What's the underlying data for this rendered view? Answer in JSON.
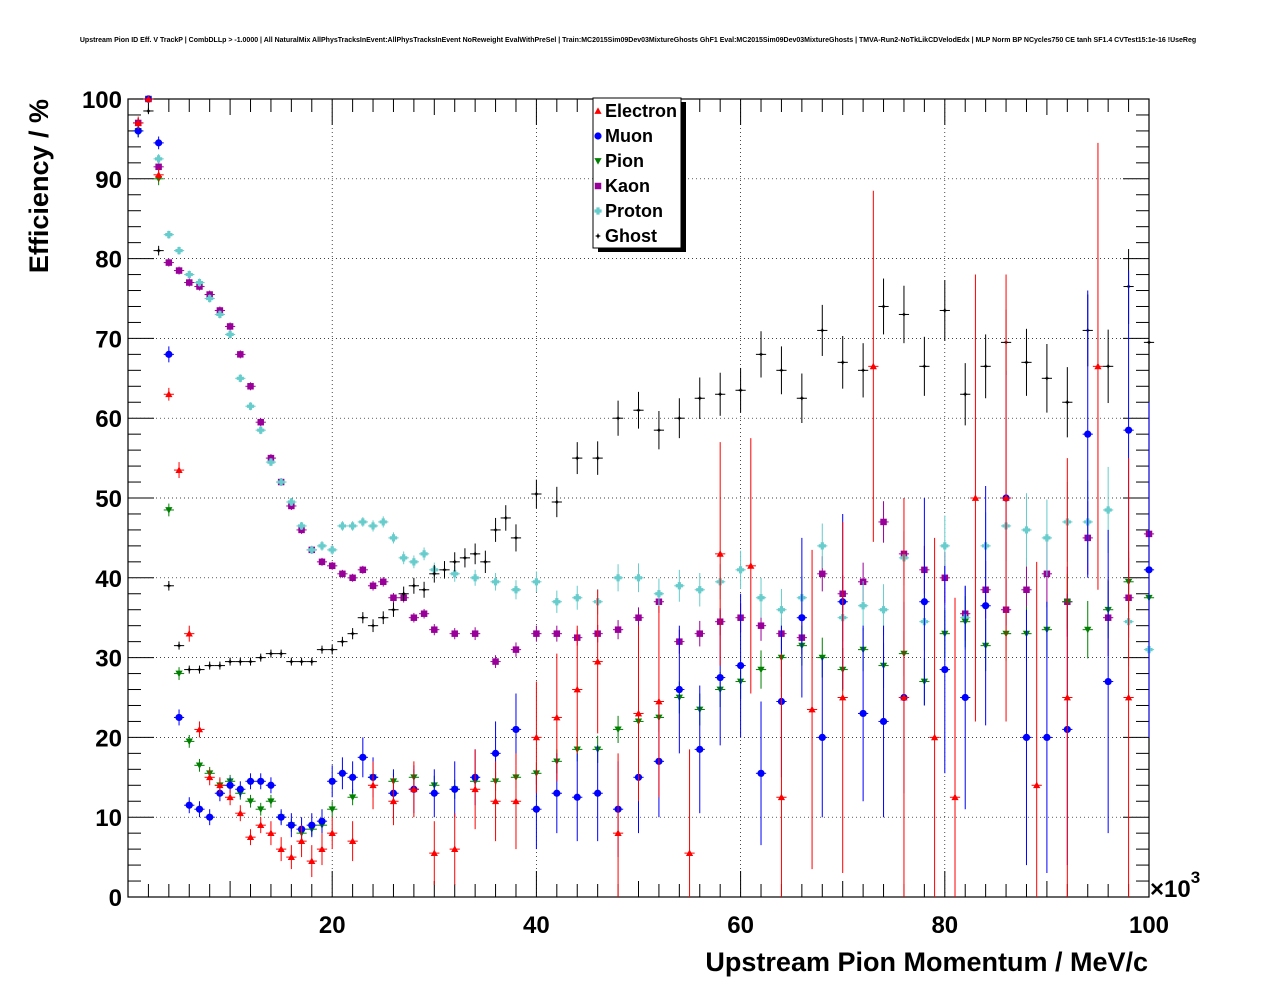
{
  "chart_data": {
    "type": "scatter",
    "title": "Upstream Pion ID Eff. V TrackP | CombDLLp > -1.0000 | All NaturalMix AllPhysTracksInEvent:AllPhysTracksInEvent NoReweight EvalWithPreSel | Train:MC2015Sim09Dev03MixtureGhosts GhF1 Eval:MC2015Sim09Dev03MixtureGhosts | TMVA-Run2-NoTkLikCDVelodEdx | MLP Norm BP NCycles750 CE tanh SF1.4 CVTest15:1e-16 !UseReg",
    "xlabel": "Upstream Pion Momentum / MeV/c",
    "ylabel": "Efficiency / %",
    "x_multiplier": "×10",
    "x_multiplier_exp": "3",
    "xlim": [
      0,
      100
    ],
    "ylim": [
      0,
      100
    ],
    "x_ticks": [
      20,
      40,
      60,
      80,
      100
    ],
    "y_ticks": [
      0,
      10,
      20,
      30,
      40,
      50,
      60,
      70,
      80,
      90,
      100
    ],
    "grid": true,
    "legend_position": "top-center",
    "x_units": "10^3 MeV/c",
    "series": [
      {
        "name": "Electron",
        "color": "#ff0000",
        "marker": "triangle-up",
        "x": [
          1,
          2,
          3,
          4,
          5,
          6,
          7,
          8,
          9,
          10,
          11,
          12,
          13,
          14,
          15,
          16,
          17,
          18,
          19,
          20,
          22,
          24,
          26,
          28,
          30,
          32,
          34,
          36,
          38,
          40,
          42,
          44,
          46,
          48,
          50,
          52,
          55,
          58,
          61,
          64,
          67,
          70,
          73,
          76,
          79,
          81,
          83,
          86,
          89,
          92,
          95,
          98
        ],
        "y": [
          97,
          100,
          90.5,
          63,
          53.5,
          33,
          21,
          15,
          14,
          12.5,
          10.5,
          7.5,
          9,
          8,
          6,
          5,
          7,
          4.5,
          6,
          8,
          7,
          14,
          12,
          13.5,
          5.5,
          6,
          13.5,
          12,
          12,
          20,
          22.5,
          26,
          29.5,
          8,
          23,
          24.5,
          5.5,
          43,
          41.5,
          12.5,
          23.5,
          25,
          66.5,
          25,
          20,
          12.5,
          50,
          50,
          14,
          25,
          66.5,
          25
        ],
        "yerr": [
          0.8,
          0.5,
          0.8,
          0.8,
          1,
          1,
          1,
          1,
          1,
          1,
          1,
          1,
          1,
          1.5,
          1.5,
          1.5,
          2,
          2,
          2,
          2,
          2.5,
          3,
          3,
          3.5,
          4,
          4.5,
          5,
          5,
          6,
          7,
          8,
          8,
          9,
          10,
          11,
          12,
          13,
          14,
          16,
          18,
          20,
          22,
          22,
          25,
          25,
          25,
          28,
          28,
          28,
          30,
          28,
          30
        ]
      },
      {
        "name": "Muon",
        "color": "#0000ff",
        "marker": "circle",
        "x": [
          1,
          2,
          3,
          4,
          5,
          6,
          7,
          8,
          9,
          10,
          11,
          12,
          13,
          14,
          15,
          16,
          17,
          18,
          19,
          20,
          21,
          22,
          23,
          24,
          26,
          28,
          30,
          32,
          34,
          36,
          38,
          40,
          42,
          44,
          46,
          48,
          50,
          52,
          54,
          56,
          58,
          60,
          62,
          64,
          66,
          68,
          70,
          72,
          74,
          76,
          78,
          80,
          82,
          84,
          86,
          88,
          90,
          92,
          94,
          96,
          98,
          100
        ],
        "y": [
          96,
          100,
          94.5,
          68,
          22.5,
          11.5,
          11,
          10,
          13,
          14,
          13.5,
          14.5,
          14.5,
          14,
          10,
          9,
          8.5,
          9,
          9.5,
          14.5,
          15.5,
          15,
          17.5,
          15,
          13,
          13.5,
          13,
          13.5,
          15,
          18,
          21,
          11,
          13,
          12.5,
          13,
          11,
          15,
          17,
          26,
          18.5,
          27.5,
          29,
          15.5,
          24.5,
          35,
          20,
          37,
          23,
          22,
          25,
          37,
          28.5,
          25,
          36.5,
          50,
          20,
          20,
          21,
          58,
          27,
          58.5,
          41
        ],
        "yerr": [
          0.8,
          0.5,
          0.8,
          1,
          1,
          1,
          1,
          1,
          1,
          1,
          1,
          1,
          1,
          1,
          1,
          1.5,
          1.5,
          1.5,
          1.5,
          2,
          2,
          2,
          2.5,
          2.5,
          3,
          3,
          3,
          3.5,
          3.5,
          4,
          4.5,
          5,
          5,
          5.5,
          6,
          6,
          7,
          7,
          8,
          8,
          8.5,
          9,
          9,
          9.5,
          10,
          10,
          11,
          11,
          12,
          12,
          13,
          13,
          14,
          15,
          16,
          16,
          17,
          17,
          18,
          19,
          20,
          21
        ]
      },
      {
        "name": "Pion",
        "color": "#008000",
        "marker": "triangle-down",
        "x": [
          1,
          2,
          3,
          4,
          5,
          6,
          7,
          8,
          9,
          10,
          11,
          12,
          13,
          14,
          15,
          16,
          17,
          18,
          19,
          20,
          22,
          24,
          26,
          28,
          30,
          32,
          34,
          36,
          38,
          40,
          42,
          44,
          46,
          48,
          50,
          52,
          54,
          56,
          58,
          60,
          62,
          64,
          66,
          68,
          70,
          72,
          74,
          76,
          78,
          80,
          82,
          84,
          86,
          88,
          90,
          92,
          94,
          96,
          98,
          100
        ],
        "y": [
          96,
          100,
          90,
          48.5,
          28,
          19.5,
          16.5,
          15.5,
          14,
          14.5,
          13,
          12,
          11,
          12,
          10,
          9,
          8,
          8.5,
          9,
          11,
          12.5,
          15,
          14.5,
          15,
          14,
          13.5,
          14.5,
          14.5,
          15,
          15.5,
          17,
          18.5,
          18.5,
          21,
          22,
          22.5,
          25,
          23.5,
          26,
          27,
          28.5,
          30,
          31.5,
          30,
          28.5,
          31,
          29,
          30.5,
          27,
          33,
          34.5,
          31.5,
          33,
          33,
          33.5,
          37,
          33.5,
          36,
          39.5,
          37.5
        ],
        "yerr": [
          0.8,
          0.5,
          0.8,
          0.8,
          0.8,
          0.8,
          0.8,
          0.8,
          0.8,
          0.8,
          0.8,
          0.8,
          0.8,
          0.8,
          0.8,
          0.8,
          0.8,
          0.8,
          1,
          1,
          1,
          1,
          1,
          1,
          1.2,
          1.2,
          1.2,
          1.2,
          1.4,
          1.4,
          1.5,
          1.5,
          1.7,
          1.7,
          1.8,
          1.8,
          2,
          2,
          2.2,
          2.2,
          2.4,
          2.4,
          2.5,
          2.5,
          2.7,
          2.7,
          2.8,
          2.8,
          3,
          3,
          3.2,
          3.2,
          3.4,
          3.4,
          3.5,
          3.5,
          3.6,
          3.6,
          3.8,
          3.8
        ]
      },
      {
        "name": "Kaon",
        "color": "#990099",
        "marker": "square",
        "x": [
          1,
          2,
          3,
          4,
          5,
          6,
          7,
          8,
          9,
          10,
          11,
          12,
          13,
          14,
          15,
          16,
          17,
          18,
          19,
          20,
          21,
          22,
          23,
          24,
          25,
          26,
          27,
          28,
          29,
          30,
          32,
          34,
          36,
          38,
          40,
          42,
          44,
          46,
          48,
          50,
          52,
          54,
          56,
          58,
          60,
          62,
          64,
          66,
          68,
          70,
          72,
          74,
          76,
          78,
          80,
          82,
          84,
          86,
          88,
          90,
          92,
          94,
          96,
          98,
          100
        ],
        "y": [
          97,
          100,
          91.5,
          79.5,
          78.5,
          77,
          76.5,
          75.5,
          73.5,
          71.5,
          68,
          64,
          59.5,
          55,
          52,
          49,
          46,
          43.5,
          42,
          41.5,
          40.5,
          40,
          41,
          39,
          39.5,
          37.5,
          37.5,
          35,
          35.5,
          33.5,
          33,
          33,
          29.5,
          31,
          33,
          33,
          32.5,
          33,
          33.5,
          35,
          37,
          32,
          33,
          34.5,
          35,
          34,
          33,
          32.5,
          40.5,
          38,
          39.5,
          47,
          43,
          41,
          40,
          35.5,
          38.5,
          36,
          38.5,
          40.5,
          37,
          45,
          35,
          37.5,
          45.5
        ],
        "yerr": [
          0.6,
          0.4,
          0.6,
          0.5,
          0.5,
          0.5,
          0.5,
          0.5,
          0.5,
          0.5,
          0.5,
          0.5,
          0.5,
          0.5,
          0.5,
          0.5,
          0.5,
          0.5,
          0.5,
          0.5,
          0.5,
          0.5,
          0.5,
          0.6,
          0.6,
          0.6,
          0.6,
          0.6,
          0.6,
          0.7,
          0.7,
          0.8,
          0.8,
          0.9,
          1,
          1,
          1,
          1.1,
          1.2,
          1.3,
          1.4,
          1.5,
          1.6,
          1.7,
          1.8,
          1.9,
          2,
          2.1,
          2.2,
          2.3,
          2.4,
          2.6,
          2.8,
          3,
          3.2,
          3.4,
          3.6,
          3.8,
          4,
          4.2,
          4.4,
          4.6,
          4.8,
          5,
          5.2
        ]
      },
      {
        "name": "Proton",
        "color": "#66cccc",
        "marker": "cross",
        "x": [
          1,
          2,
          3,
          4,
          5,
          6,
          7,
          8,
          9,
          10,
          11,
          12,
          13,
          14,
          15,
          16,
          17,
          18,
          19,
          20,
          21,
          22,
          23,
          24,
          25,
          26,
          27,
          28,
          29,
          30,
          32,
          34,
          36,
          38,
          40,
          42,
          44,
          46,
          48,
          50,
          52,
          54,
          56,
          58,
          60,
          62,
          64,
          66,
          68,
          70,
          72,
          74,
          76,
          78,
          80,
          82,
          84,
          86,
          88,
          90,
          92,
          94,
          96,
          98,
          100
        ],
        "y": [
          96,
          100,
          92.5,
          83,
          81,
          78,
          77,
          75,
          73,
          70.5,
          65,
          61.5,
          58.5,
          54.5,
          52,
          49.5,
          46.5,
          43.5,
          44,
          43.5,
          46.5,
          46.5,
          47,
          46.5,
          47,
          45,
          42.5,
          42,
          43,
          41,
          40.5,
          40,
          39.5,
          38.5,
          39.5,
          37,
          37.5,
          37,
          40,
          40,
          38,
          39,
          38.5,
          39.5,
          41,
          37.5,
          36,
          37.5,
          44,
          35,
          36.5,
          36,
          42.5,
          34.5,
          44,
          35,
          44,
          46.5,
          46,
          45,
          47,
          47,
          48.5,
          34.5,
          31
        ],
        "yerr": [
          0.6,
          0.4,
          0.6,
          0.5,
          0.5,
          0.5,
          0.5,
          0.5,
          0.5,
          0.5,
          0.5,
          0.5,
          0.5,
          0.5,
          0.5,
          0.5,
          0.5,
          0.5,
          0.6,
          0.6,
          0.6,
          0.6,
          0.6,
          0.7,
          0.7,
          0.7,
          0.8,
          0.8,
          0.8,
          0.9,
          1,
          1,
          1.1,
          1.2,
          1.3,
          1.4,
          1.5,
          1.6,
          1.7,
          1.8,
          1.9,
          2,
          2.1,
          2.2,
          2.4,
          2.5,
          2.6,
          2.7,
          2.8,
          3,
          3.1,
          3.2,
          3.4,
          3.6,
          3.8,
          4,
          4.2,
          4.4,
          4.6,
          4.8,
          5,
          5.2,
          5.4,
          5.6,
          5.8
        ]
      },
      {
        "name": "Ghost",
        "color": "#000000",
        "marker": "star",
        "x": [
          1,
          2,
          3,
          4,
          5,
          6,
          7,
          8,
          9,
          10,
          11,
          12,
          13,
          14,
          15,
          16,
          17,
          18,
          19,
          20,
          21,
          22,
          23,
          24,
          25,
          26,
          27,
          28,
          29,
          30,
          31,
          32,
          33,
          34,
          35,
          36,
          37,
          38,
          40,
          42,
          44,
          46,
          48,
          50,
          52,
          54,
          56,
          58,
          60,
          62,
          64,
          66,
          68,
          70,
          72,
          74,
          76,
          78,
          80,
          82,
          84,
          86,
          88,
          90,
          92,
          94,
          96,
          98,
          100
        ],
        "y": [
          97,
          98.5,
          81,
          39,
          31.5,
          28.5,
          28.5,
          29,
          29,
          29.5,
          29.5,
          29.5,
          30,
          30.5,
          30.5,
          29.5,
          29.5,
          29.5,
          31,
          31,
          32,
          33,
          35,
          34,
          35,
          36,
          38,
          39,
          38.5,
          40.5,
          41,
          42,
          42.5,
          43,
          42,
          46,
          47.5,
          45,
          50.5,
          49.5,
          55,
          55,
          60,
          61,
          58.5,
          60,
          62.5,
          63,
          63.5,
          68,
          66,
          62.5,
          71,
          67,
          66,
          74,
          73,
          66.5,
          73.5,
          63,
          66.5,
          69.5,
          67,
          65,
          62,
          71,
          66.5,
          76.5,
          69.5
        ],
        "yerr": [
          0.6,
          0.4,
          0.6,
          0.6,
          0.5,
          0.5,
          0.5,
          0.5,
          0.5,
          0.5,
          0.5,
          0.5,
          0.5,
          0.5,
          0.5,
          0.5,
          0.5,
          0.5,
          0.5,
          0.6,
          0.6,
          0.7,
          0.7,
          0.8,
          0.8,
          0.9,
          0.9,
          1,
          1,
          1.1,
          1.1,
          1.2,
          1.2,
          1.3,
          1.4,
          1.5,
          1.6,
          1.7,
          1.8,
          1.9,
          2,
          2.1,
          2.2,
          2.3,
          2.4,
          2.5,
          2.6,
          2.7,
          2.8,
          2.9,
          3,
          3.1,
          3.2,
          3.3,
          3.4,
          3.5,
          3.6,
          3.7,
          3.8,
          3.9,
          4,
          4.1,
          4.2,
          4.3,
          4.4,
          4.5,
          4.6,
          4.7,
          4.8
        ]
      }
    ]
  }
}
